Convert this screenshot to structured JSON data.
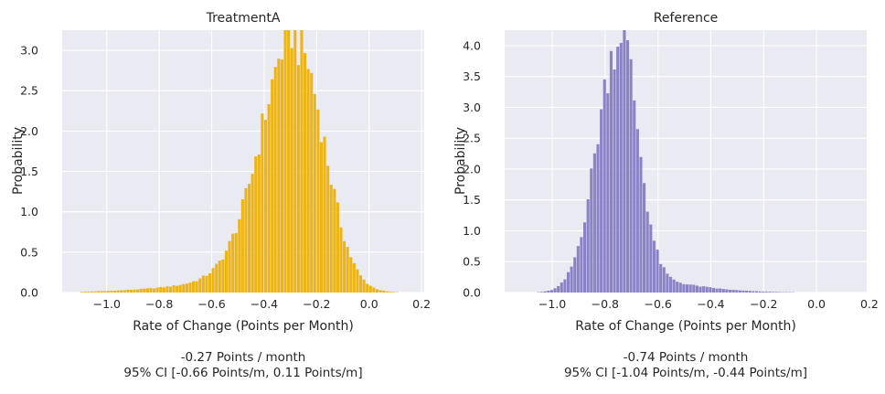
{
  "chart_data": [
    {
      "type": "bar",
      "title": "TreatmentA",
      "xlabel": "Rate of Change (Points per Month)",
      "ylabel": "Probability",
      "xlim": [
        -1.17,
        0.21
      ],
      "ylim": [
        0,
        3.25
      ],
      "xticks": [
        -1.0,
        -0.8,
        -0.6,
        -0.4,
        -0.2,
        0.0,
        0.2
      ],
      "xtick_labels": [
        "−1.0",
        "−0.8",
        "−0.6",
        "−0.4",
        "−0.2",
        "0.0",
        "0.2"
      ],
      "yticks": [
        0.0,
        0.5,
        1.0,
        1.5,
        2.0,
        2.5,
        3.0
      ],
      "ytick_labels": [
        "0.0",
        "0.5",
        "1.0",
        "1.5",
        "2.0",
        "2.5",
        "3.0"
      ],
      "grid": true,
      "color": "#eeb415",
      "bin_width": 0.0125,
      "bins": {
        "x_start": -1.1,
        "x_end": 0.21,
        "peak_x": -0.275,
        "peak_y": 3.08
      },
      "summary_line1": "-0.27 Points / month",
      "summary_line2": "95% CI [-0.66 Points/m, 0.11 Points/m]"
    },
    {
      "type": "bar",
      "title": "Reference",
      "xlabel": "Rate of Change (Points per Month)",
      "ylabel": "Probability",
      "xlim": [
        -1.18,
        0.19
      ],
      "ylim": [
        0,
        4.25
      ],
      "xticks": [
        -1.0,
        -0.8,
        -0.6,
        -0.4,
        -0.2,
        0.0,
        0.2
      ],
      "xtick_labels": [
        "−1.0",
        "−0.8",
        "−0.6",
        "−0.4",
        "−0.2",
        "0.0",
        "0.2"
      ],
      "yticks": [
        0.0,
        0.5,
        1.0,
        1.5,
        2.0,
        2.5,
        3.0,
        3.5,
        4.0
      ],
      "ytick_labels": [
        "0.0",
        "0.5",
        "1.0",
        "1.5",
        "2.0",
        "2.5",
        "3.0",
        "3.5",
        "4.0"
      ],
      "grid": true,
      "color": "#8a84c6",
      "bin_width": 0.0125,
      "bins": {
        "x_start": -1.17,
        "x_end": 0.16,
        "peak_x": -0.745,
        "peak_y": 4.08
      },
      "summary_line1": "-0.74 Points / month",
      "summary_line2": "95% CI [-1.04 Points/m, -0.44 Points/m]"
    }
  ]
}
